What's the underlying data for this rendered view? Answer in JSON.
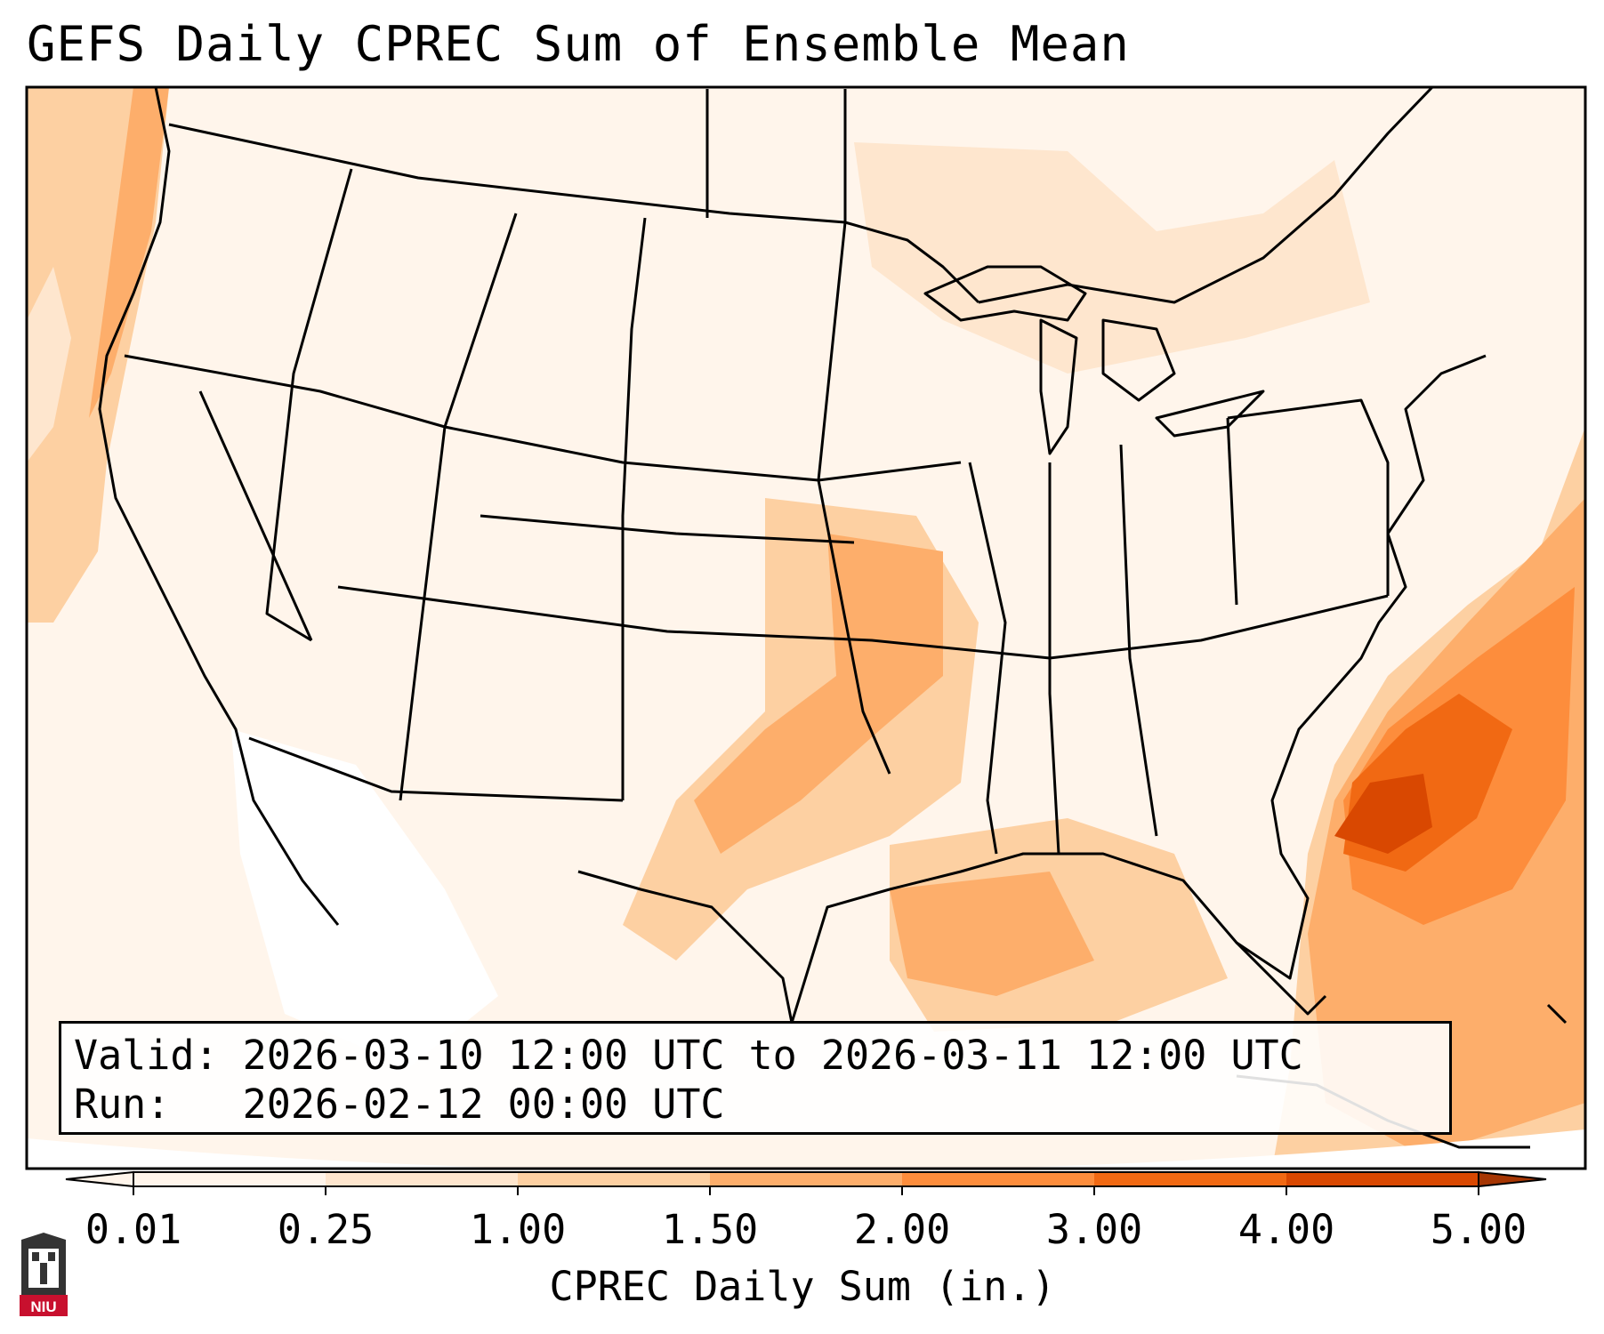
{
  "title": "GEFS Daily CPREC Sum of Ensemble Mean",
  "info": {
    "valid_label": "Valid:",
    "valid_value": "2026-03-10 12:00 UTC to 2026-03-11 12:00 UTC",
    "run_label": "Run:",
    "run_value": "2026-02-12 00:00 UTC"
  },
  "colorbar": {
    "label": "CPREC Daily Sum (in.)",
    "ticks": [
      "0.01",
      "0.25",
      "1.00",
      "1.50",
      "2.00",
      "3.00",
      "4.00",
      "5.00"
    ],
    "colors": [
      "#fff5eb",
      "#fee6ce",
      "#fdd0a2",
      "#fdae6b",
      "#fd8d3c",
      "#f16913",
      "#d94801",
      "#a63603"
    ],
    "extend": "both"
  },
  "logo": {
    "text": "NIU"
  }
}
